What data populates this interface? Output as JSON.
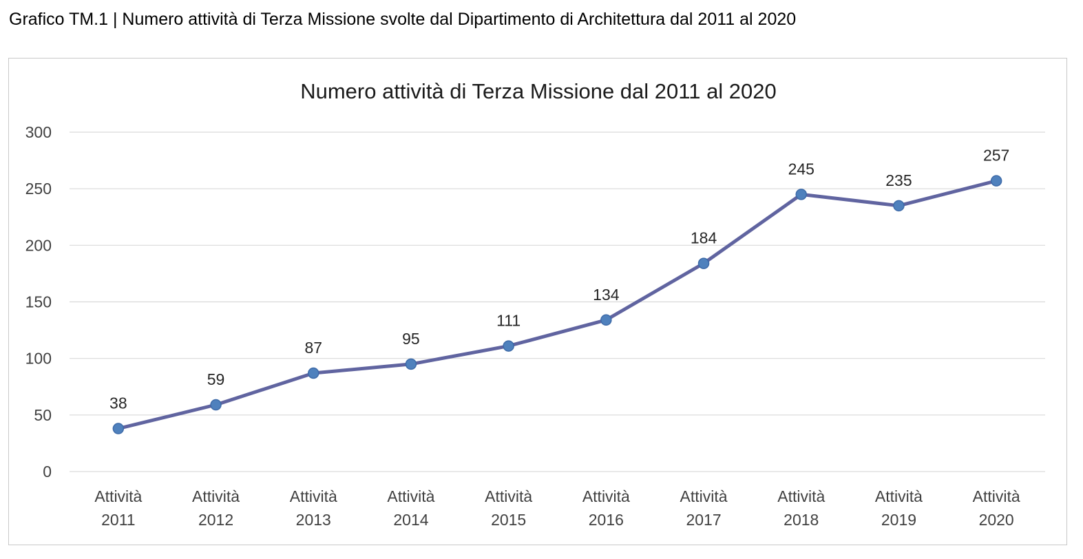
{
  "caption": "Grafico TM.1 | Numero attività di Terza Missione svolte dal Dipartimento di Architettura dal 2011 al 2020",
  "chart_data": {
    "type": "line",
    "title": "Numero attività di Terza Missione dal 2011 al 2020",
    "xlabel": "",
    "ylabel": "",
    "categories": [
      [
        "Attività",
        "2011"
      ],
      [
        "Attività",
        "2012"
      ],
      [
        "Attività",
        "2013"
      ],
      [
        "Attività",
        "2014"
      ],
      [
        "Attività",
        "2015"
      ],
      [
        "Attività",
        "2016"
      ],
      [
        "Attività",
        "2017"
      ],
      [
        "Attività",
        "2018"
      ],
      [
        "Attività",
        "2019"
      ],
      [
        "Attività",
        "2020"
      ]
    ],
    "series": [
      {
        "values": [
          38,
          59,
          87,
          95,
          111,
          134,
          184,
          245,
          235,
          257
        ]
      }
    ],
    "ylim": [
      0,
      300
    ],
    "yticks": [
      0,
      50,
      100,
      150,
      200,
      250,
      300
    ],
    "grid": true,
    "legend": "none",
    "data_labels": true,
    "colors": {
      "line": "#6064a0",
      "marker_fill": "#4f81bd",
      "marker_stroke": "#3d6aa8",
      "grid": "#d9d9d9"
    }
  }
}
